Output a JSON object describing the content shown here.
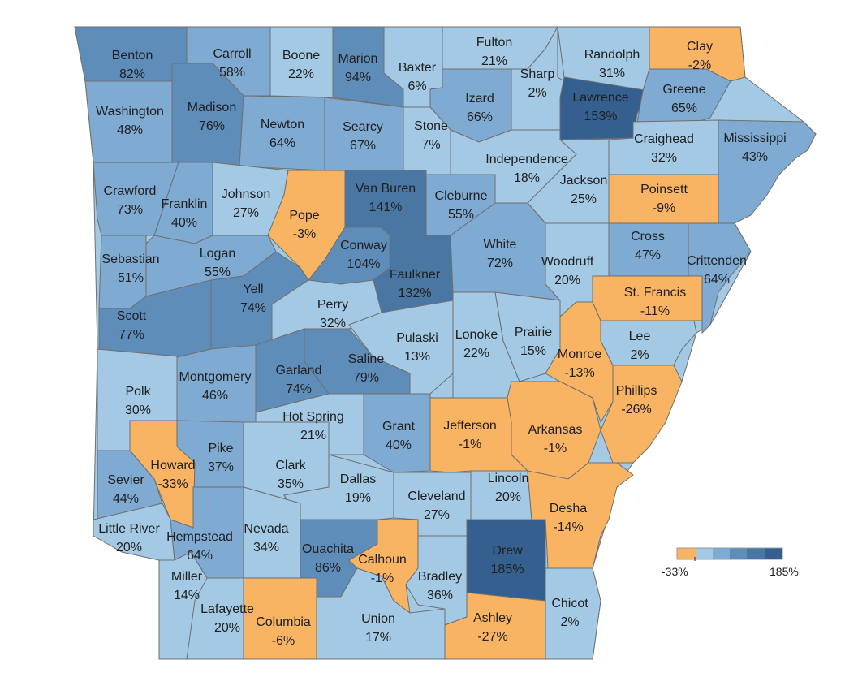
{
  "map": {
    "region": "Arkansas counties",
    "colors": {
      "negative": "#F9B463",
      "bins": [
        "#A3C9E4",
        "#7FAAD2",
        "#5F8DBA",
        "#4A76A3",
        "#345F8E"
      ],
      "border": "#6f6f6f"
    },
    "counties": [
      {
        "name": "Benton",
        "value": "82%"
      },
      {
        "name": "Carroll",
        "value": "58%"
      },
      {
        "name": "Boone",
        "value": "22%"
      },
      {
        "name": "Marion",
        "value": "94%"
      },
      {
        "name": "Baxter",
        "value": "6%"
      },
      {
        "name": "Fulton",
        "value": "21%"
      },
      {
        "name": "Randolph",
        "value": "31%"
      },
      {
        "name": "Clay",
        "value": "-2%"
      },
      {
        "name": "Sharp",
        "value": "2%"
      },
      {
        "name": "Izard",
        "value": "66%"
      },
      {
        "name": "Lawrence",
        "value": "153%"
      },
      {
        "name": "Greene",
        "value": "65%"
      },
      {
        "name": "Washington",
        "value": "48%"
      },
      {
        "name": "Madison",
        "value": "76%"
      },
      {
        "name": "Newton",
        "value": "64%"
      },
      {
        "name": "Searcy",
        "value": "67%"
      },
      {
        "name": "Stone",
        "value": "7%"
      },
      {
        "name": "Craighead",
        "value": "32%"
      },
      {
        "name": "Mississippi",
        "value": "43%"
      },
      {
        "name": "Independence",
        "value": "18%"
      },
      {
        "name": "Jackson",
        "value": "25%"
      },
      {
        "name": "Crawford",
        "value": "73%"
      },
      {
        "name": "Franklin",
        "value": "40%"
      },
      {
        "name": "Johnson",
        "value": "27%"
      },
      {
        "name": "Van Buren",
        "value": "141%"
      },
      {
        "name": "Cleburne",
        "value": "55%"
      },
      {
        "name": "Pope",
        "value": "-3%"
      },
      {
        "name": "Poinsett",
        "value": "-9%"
      },
      {
        "name": "Conway",
        "value": "104%"
      },
      {
        "name": "White",
        "value": "72%"
      },
      {
        "name": "Cross",
        "value": "47%"
      },
      {
        "name": "Crittenden",
        "value": "64%"
      },
      {
        "name": "Sebastian",
        "value": "51%"
      },
      {
        "name": "Logan",
        "value": "55%"
      },
      {
        "name": "Faulkner",
        "value": "132%"
      },
      {
        "name": "Woodruff",
        "value": "20%"
      },
      {
        "name": "Yell",
        "value": "74%"
      },
      {
        "name": "St. Francis",
        "value": "-11%"
      },
      {
        "name": "Perry",
        "value": "32%"
      },
      {
        "name": "Scott",
        "value": "77%"
      },
      {
        "name": "Pulaski",
        "value": "13%"
      },
      {
        "name": "Lonoke",
        "value": "22%"
      },
      {
        "name": "Prairie",
        "value": "15%"
      },
      {
        "name": "Lee",
        "value": "2%"
      },
      {
        "name": "Monroe",
        "value": "-13%"
      },
      {
        "name": "Garland",
        "value": "74%"
      },
      {
        "name": "Saline",
        "value": "79%"
      },
      {
        "name": "Polk",
        "value": "30%"
      },
      {
        "name": "Montgomery",
        "value": "46%"
      },
      {
        "name": "Phillips",
        "value": "-26%"
      },
      {
        "name": "Hot Spring",
        "value": "21%"
      },
      {
        "name": "Grant",
        "value": "40%"
      },
      {
        "name": "Jefferson",
        "value": "-1%"
      },
      {
        "name": "Arkansas",
        "value": "-1%"
      },
      {
        "name": "Pike",
        "value": "37%"
      },
      {
        "name": "Howard",
        "value": "-33%"
      },
      {
        "name": "Clark",
        "value": "35%"
      },
      {
        "name": "Sevier",
        "value": "44%"
      },
      {
        "name": "Dallas",
        "value": "19%"
      },
      {
        "name": "Lincoln",
        "value": "20%"
      },
      {
        "name": "Cleveland",
        "value": "27%"
      },
      {
        "name": "Desha",
        "value": "-14%"
      },
      {
        "name": "Little River",
        "value": "20%"
      },
      {
        "name": "Hempstead",
        "value": "64%"
      },
      {
        "name": "Nevada",
        "value": "34%"
      },
      {
        "name": "Ouachita",
        "value": "86%"
      },
      {
        "name": "Calhoun",
        "value": "-1%"
      },
      {
        "name": "Drew",
        "value": "185%"
      },
      {
        "name": "Bradley",
        "value": "36%"
      },
      {
        "name": "Miller",
        "value": "14%"
      },
      {
        "name": "Lafayette",
        "value": "20%"
      },
      {
        "name": "Chicot",
        "value": "2%"
      },
      {
        "name": "Columbia",
        "value": "-6%"
      },
      {
        "name": "Union",
        "value": "17%"
      },
      {
        "name": "Ashley",
        "value": "-27%"
      }
    ]
  },
  "legend": {
    "min_label": "-33%",
    "max_label": "185%",
    "min": -33,
    "max": 185
  }
}
